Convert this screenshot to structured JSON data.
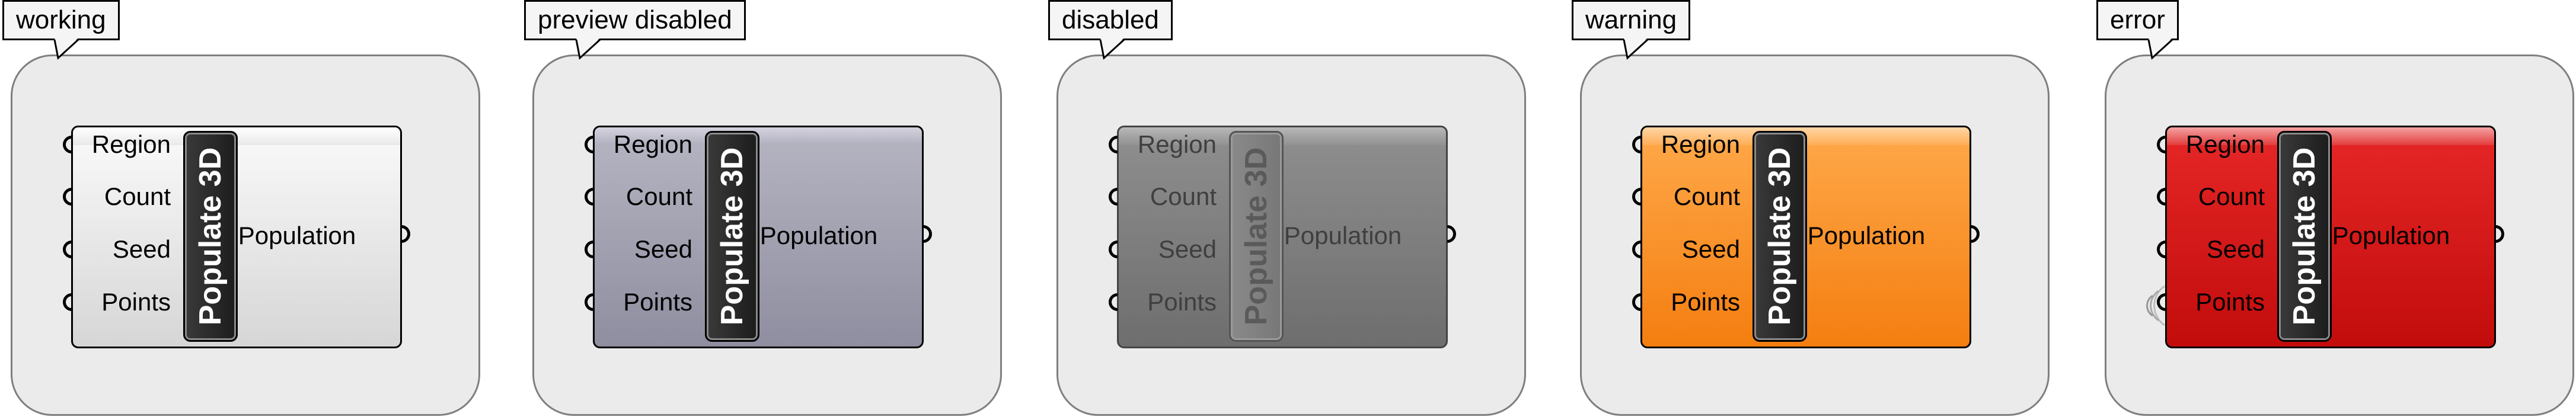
{
  "component": {
    "title": "Populate 3D",
    "inputs": [
      "Region",
      "Count",
      "Seed",
      "Points"
    ],
    "output": "Population"
  },
  "states": [
    {
      "key": "working",
      "label": "working"
    },
    {
      "key": "preview",
      "label": "preview disabled"
    },
    {
      "key": "disabled",
      "label": "disabled"
    },
    {
      "key": "warning",
      "label": "warning",
      "color": "#f7931e"
    },
    {
      "key": "error",
      "label": "error",
      "color": "#cc1111"
    }
  ],
  "icons": {
    "input_grip": "half-circle-input-grip-icon",
    "output_grip": "half-circle-output-grip-icon",
    "error_ripple": "error-ripple-icon"
  }
}
